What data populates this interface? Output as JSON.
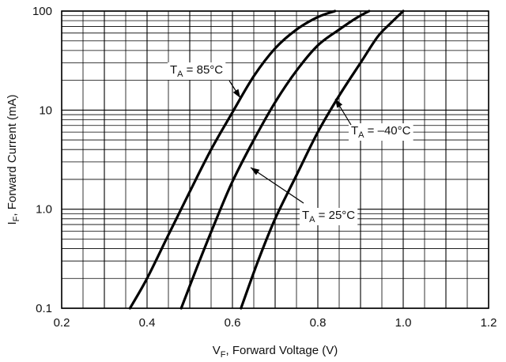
{
  "chart_data": {
    "type": "line",
    "title": "",
    "xlabel": {
      "main": "V",
      "sub": "F",
      "rest": ", Forward Voltage (V)"
    },
    "ylabel": {
      "main": "I",
      "sub": "F",
      "rest": ", Forward Current (mA)"
    },
    "xlim": [
      0.2,
      1.2
    ],
    "ylim": [
      0.1,
      100
    ],
    "yscale": "log",
    "grid": true,
    "x_ticks": [
      "0.2",
      "0.4",
      "0.6",
      "0.8",
      "1.0",
      "1.2"
    ],
    "y_ticks": [
      "0.1",
      "1.0",
      "10",
      "100"
    ],
    "series": [
      {
        "label": {
          "main": "T",
          "sub": "A",
          "rest": " = 85°C"
        },
        "points": [
          [
            0.36,
            0.1
          ],
          [
            0.4,
            0.2
          ],
          [
            0.45,
            0.55
          ],
          [
            0.5,
            1.5
          ],
          [
            0.55,
            4.0
          ],
          [
            0.6,
            9.5
          ],
          [
            0.65,
            22
          ],
          [
            0.7,
            42
          ],
          [
            0.75,
            65
          ],
          [
            0.8,
            87
          ],
          [
            0.84,
            100
          ]
        ]
      },
      {
        "label": {
          "main": "T",
          "sub": "A",
          "rest": " = 25°C"
        },
        "points": [
          [
            0.48,
            0.1
          ],
          [
            0.52,
            0.28
          ],
          [
            0.56,
            0.75
          ],
          [
            0.6,
            1.9
          ],
          [
            0.65,
            5.0
          ],
          [
            0.7,
            12
          ],
          [
            0.75,
            25
          ],
          [
            0.8,
            45
          ],
          [
            0.85,
            65
          ],
          [
            0.89,
            85
          ],
          [
            0.92,
            100
          ]
        ]
      },
      {
        "label": {
          "main": "T",
          "sub": "A",
          "rest": " = –40°C"
        },
        "points": [
          [
            0.62,
            0.1
          ],
          [
            0.66,
            0.3
          ],
          [
            0.7,
            0.8
          ],
          [
            0.75,
            2.2
          ],
          [
            0.8,
            6.0
          ],
          [
            0.85,
            14
          ],
          [
            0.9,
            30
          ],
          [
            0.94,
            55
          ],
          [
            0.97,
            75
          ],
          [
            1.0,
            100
          ]
        ]
      }
    ]
  }
}
